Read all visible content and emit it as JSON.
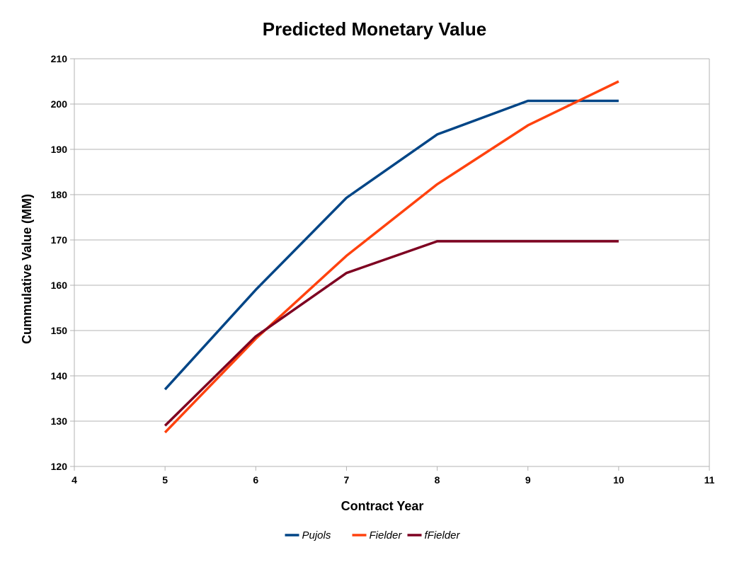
{
  "chart_data": {
    "type": "line",
    "title": "Predicted Monetary Value",
    "xlabel": "Contract Year",
    "ylabel": "Cummulative Value (MM)",
    "xlim": [
      4,
      11
    ],
    "ylim": [
      120,
      210
    ],
    "xticks": [
      4,
      5,
      6,
      7,
      8,
      9,
      10,
      11
    ],
    "yticks": [
      120,
      130,
      140,
      150,
      160,
      170,
      180,
      190,
      200,
      210
    ],
    "grid": "horizontal",
    "legend_position": "bottom",
    "series": [
      {
        "name": "Pujols",
        "color": "#004586",
        "x": [
          5,
          6,
          7,
          8,
          9,
          10
        ],
        "y": [
          137,
          159,
          179.3,
          193.3,
          200.7,
          200.7
        ]
      },
      {
        "name": "Fielder",
        "color": "#ff420e",
        "x": [
          5,
          6,
          7,
          8,
          9,
          10
        ],
        "y": [
          127.5,
          148.2,
          166.5,
          182.3,
          195.3,
          205
        ]
      },
      {
        "name": "fFielder",
        "color": "#7e0021",
        "x": [
          5,
          6,
          7,
          8,
          9,
          10
        ],
        "y": [
          129,
          148.7,
          162.7,
          169.7,
          169.7,
          169.7
        ]
      }
    ]
  }
}
